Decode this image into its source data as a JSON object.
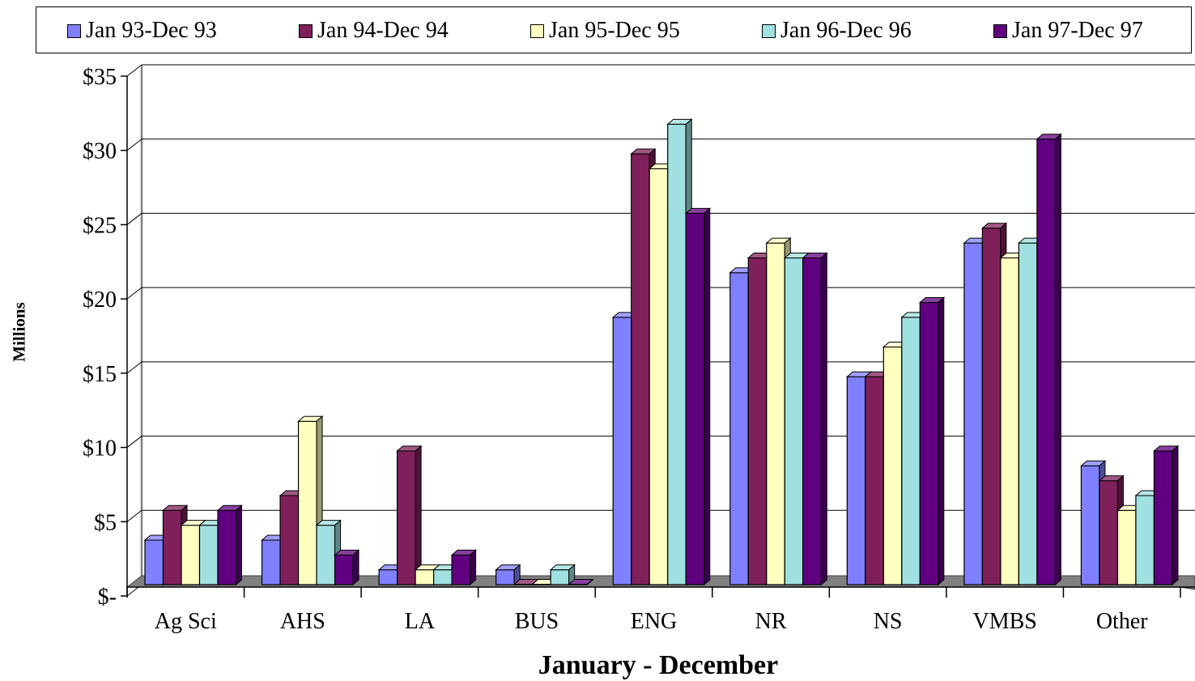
{
  "chart_data": {
    "type": "bar",
    "title": "",
    "xlabel": "January - December",
    "ylabel": "Millions",
    "categories": [
      "Ag Sci",
      "AHS",
      "LA",
      "BUS",
      "ENG",
      "NR",
      "NS",
      "VMBS",
      "Other"
    ],
    "series": [
      {
        "name": "Jan 93-Dec 93",
        "color": "#8080FF",
        "values": [
          3,
          3,
          1,
          1,
          18,
          21,
          14,
          23,
          8
        ]
      },
      {
        "name": "Jan 94-Dec 94",
        "color": "#80205A",
        "values": [
          5,
          6,
          9,
          0,
          29,
          22,
          14,
          24,
          7
        ]
      },
      {
        "name": "Jan 95-Dec 95",
        "color": "#FFFFC0",
        "values": [
          4,
          11,
          1,
          0,
          28,
          23,
          16,
          22,
          5
        ]
      },
      {
        "name": "Jan 96-Dec 96",
        "color": "#A0E0E0",
        "values": [
          4,
          4,
          1,
          1,
          31,
          22,
          18,
          23,
          6
        ]
      },
      {
        "name": "Jan 97-Dec 97",
        "color": "#600080",
        "values": [
          5,
          2,
          2,
          0,
          25,
          22,
          19,
          30,
          9
        ]
      }
    ],
    "ylim": [
      0,
      35
    ],
    "yticks": [
      {
        "value": 0,
        "label": "$-"
      },
      {
        "value": 5,
        "label": "$5"
      },
      {
        "value": 10,
        "label": "$10"
      },
      {
        "value": 15,
        "label": "$15"
      },
      {
        "value": 20,
        "label": "$20"
      },
      {
        "value": 25,
        "label": "$25"
      },
      {
        "value": 30,
        "label": "$30"
      },
      {
        "value": 35,
        "label": "$35"
      }
    ],
    "grid": true,
    "legend": "top"
  }
}
